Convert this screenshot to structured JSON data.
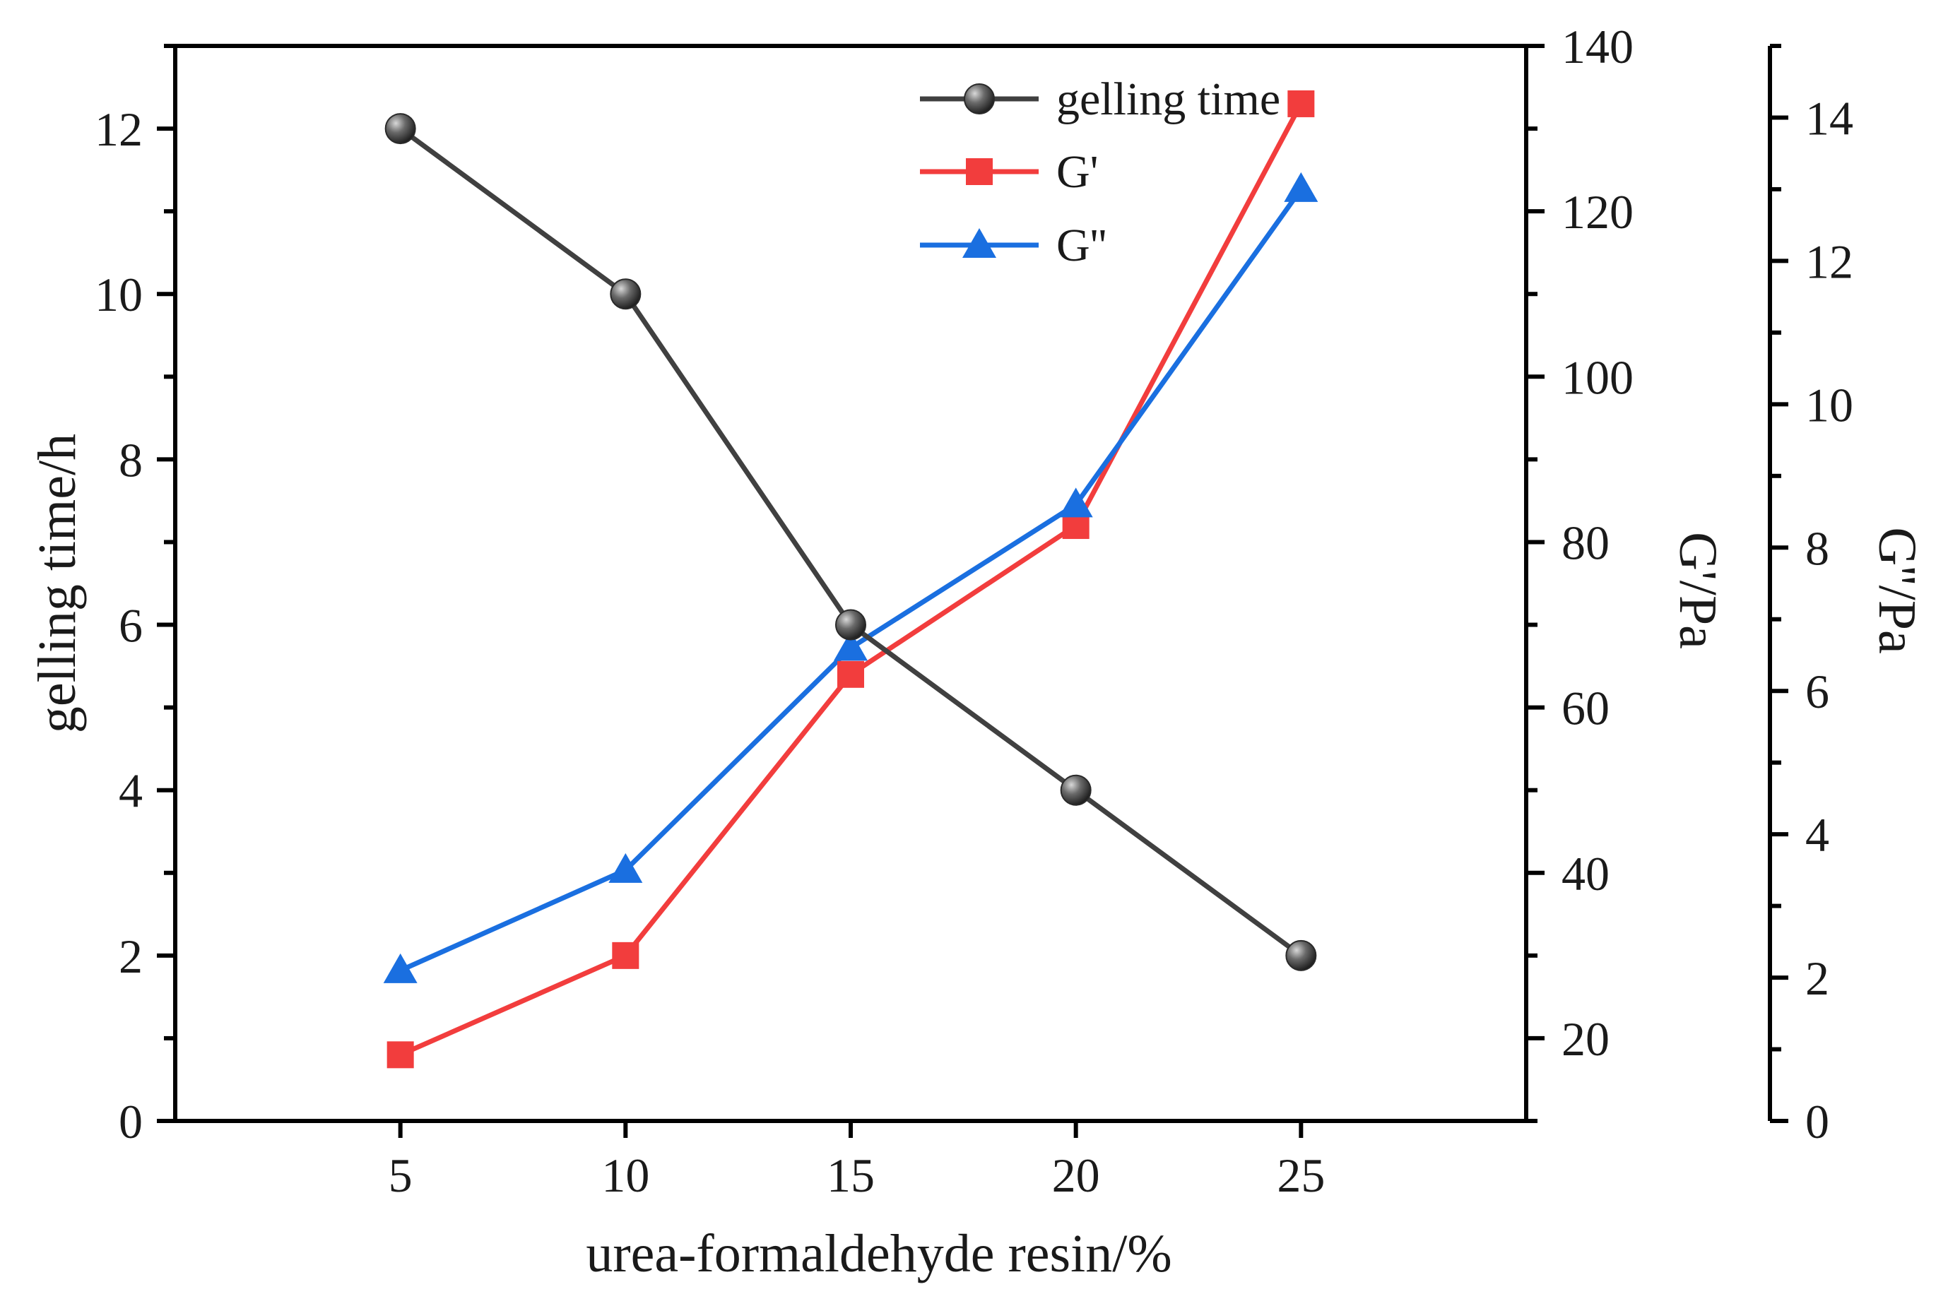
{
  "chart_data": {
    "type": "line",
    "title": "",
    "x": [
      5,
      10,
      15,
      20,
      25
    ],
    "xlabel": "urea-formaldehyde resin/%",
    "xlim": [
      0,
      30
    ],
    "xticks": [
      5,
      10,
      15,
      20,
      25
    ],
    "y_axes": {
      "left": {
        "label": "gelling time/h",
        "lim": [
          0,
          13.0
        ],
        "ticks": [
          0,
          2,
          4,
          6,
          8,
          10,
          12
        ],
        "minor_step": 1
      },
      "right1": {
        "label": "G'/Pa",
        "lim": [
          10,
          140
        ],
        "ticks": [
          20,
          40,
          60,
          80,
          100,
          120,
          140
        ],
        "minor_step": 10
      },
      "right2": {
        "label": "G''/Pa",
        "lim": [
          0,
          15
        ],
        "ticks": [
          0,
          2,
          4,
          6,
          8,
          10,
          12,
          14
        ],
        "minor_step": 1
      }
    },
    "series": [
      {
        "name": "gelling time",
        "axis": "left",
        "marker": "sphere",
        "color": "#404040",
        "values": [
          12.0,
          10.0,
          6.0,
          4.0,
          2.0
        ]
      },
      {
        "name": "G'",
        "axis": "right1",
        "marker": "square",
        "color": "#f23d3d",
        "values": [
          18,
          30,
          64,
          82,
          133
        ]
      },
      {
        "name": "G''",
        "axis": "right2",
        "marker": "triangle",
        "color": "#1a6fe0",
        "values": [
          2.1,
          3.5,
          6.6,
          8.6,
          13.0
        ]
      }
    ],
    "legend": {
      "position": "top-right"
    },
    "grid": false
  }
}
